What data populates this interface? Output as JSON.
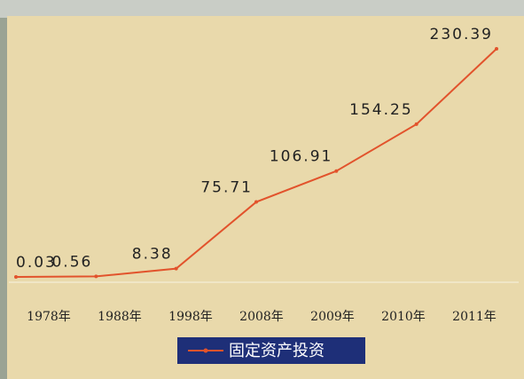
{
  "chart_data": {
    "type": "line",
    "categories": [
      "1978年",
      "1988年",
      "1998年",
      "2008年",
      "2009年",
      "2010年",
      "2011年"
    ],
    "series": [
      {
        "name": "固定资产投资",
        "color": "#e2532c",
        "values": [
          0.03,
          0.56,
          8.38,
          75.71,
          106.91,
          154.25,
          230.39
        ]
      }
    ],
    "legend": "bottom"
  }
}
